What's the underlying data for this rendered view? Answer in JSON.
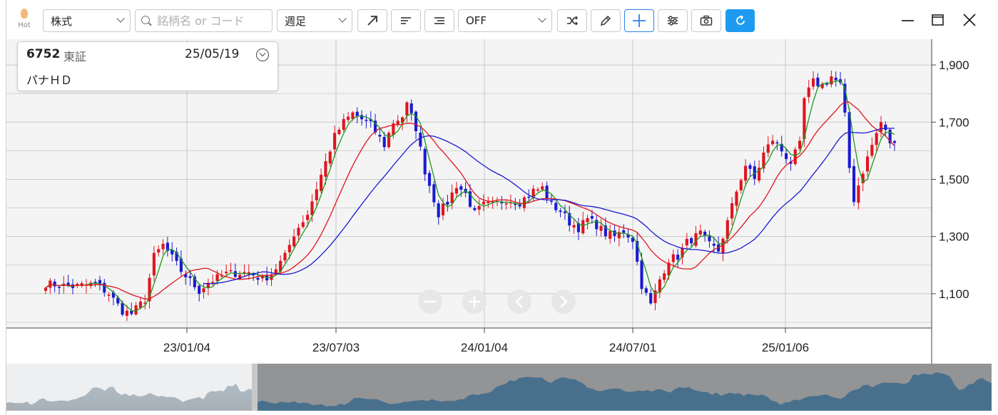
{
  "toolbar": {
    "hot_label": "Hot",
    "type_select": "株式",
    "search_placeholder": "銘柄名 or コード",
    "period_select": "週足",
    "indicator_select": "OFF"
  },
  "info": {
    "code": "6752",
    "market": "東証",
    "date": "25/05/19",
    "name": "パナＨＤ"
  },
  "colors": {
    "up": "#e0141e",
    "down": "#1a1ad2",
    "ma_short": "#1a9a1a",
    "ma_mid": "#e0141e",
    "ma_long": "#1a1ad2",
    "accent": "#1e9bf0"
  },
  "chart_data": {
    "type": "candlestick",
    "y_ticks": [
      "1,900",
      "1,700",
      "1,500",
      "1,300",
      "1,100"
    ],
    "x_ticks": [
      "23/01/04",
      "23/07/03",
      "24/01/04",
      "24/07/01",
      "25/01/06"
    ],
    "ylim": [
      980,
      1990
    ],
    "grid": true,
    "moving_averages": [
      "short",
      "mid",
      "long"
    ],
    "anchors": [
      [
        0,
        1135
      ],
      [
        6,
        1125
      ],
      [
        11,
        1135
      ],
      [
        14,
        1100
      ],
      [
        17,
        1040
      ],
      [
        19,
        1030
      ],
      [
        22,
        1080
      ],
      [
        24,
        1230
      ],
      [
        26,
        1270
      ],
      [
        30,
        1180
      ],
      [
        34,
        1110
      ],
      [
        36,
        1140
      ],
      [
        40,
        1170
      ],
      [
        45,
        1175
      ],
      [
        48,
        1150
      ],
      [
        50,
        1170
      ],
      [
        53,
        1230
      ],
      [
        55,
        1310
      ],
      [
        58,
        1380
      ],
      [
        60,
        1470
      ],
      [
        62,
        1560
      ],
      [
        64,
        1650
      ],
      [
        66,
        1700
      ],
      [
        68,
        1730
      ],
      [
        70,
        1710
      ],
      [
        72,
        1690
      ],
      [
        75,
        1620
      ],
      [
        77,
        1700
      ],
      [
        79,
        1720
      ],
      [
        80,
        1760
      ],
      [
        82,
        1680
      ],
      [
        84,
        1530
      ],
      [
        87,
        1380
      ],
      [
        89,
        1420
      ],
      [
        91,
        1480
      ],
      [
        93,
        1450
      ],
      [
        95,
        1380
      ],
      [
        97,
        1410
      ],
      [
        99,
        1410
      ],
      [
        102,
        1430
      ],
      [
        105,
        1420
      ],
      [
        108,
        1460
      ],
      [
        110,
        1470
      ],
      [
        112,
        1410
      ],
      [
        114,
        1390
      ],
      [
        116,
        1350
      ],
      [
        118,
        1330
      ],
      [
        120,
        1360
      ],
      [
        122,
        1340
      ],
      [
        124,
        1310
      ],
      [
        126,
        1300
      ],
      [
        128,
        1320
      ],
      [
        130,
        1290
      ],
      [
        132,
        1130
      ],
      [
        134,
        1060
      ],
      [
        136,
        1150
      ],
      [
        138,
        1220
      ],
      [
        140,
        1230
      ],
      [
        142,
        1280
      ],
      [
        145,
        1310
      ],
      [
        147,
        1270
      ],
      [
        149,
        1250
      ],
      [
        151,
        1350
      ],
      [
        153,
        1460
      ],
      [
        155,
        1550
      ],
      [
        157,
        1500
      ],
      [
        159,
        1590
      ],
      [
        161,
        1640
      ],
      [
        163,
        1600
      ],
      [
        165,
        1560
      ],
      [
        167,
        1620
      ],
      [
        168,
        1780
      ],
      [
        170,
        1840
      ],
      [
        172,
        1830
      ],
      [
        174,
        1860
      ],
      [
        176,
        1830
      ],
      [
        177,
        1720
      ],
      [
        178,
        1540
      ],
      [
        179,
        1430
      ],
      [
        181,
        1530
      ],
      [
        183,
        1620
      ],
      [
        185,
        1700
      ],
      [
        187,
        1630
      ],
      [
        188,
        1620
      ]
    ],
    "long_ma_start": 35
  }
}
